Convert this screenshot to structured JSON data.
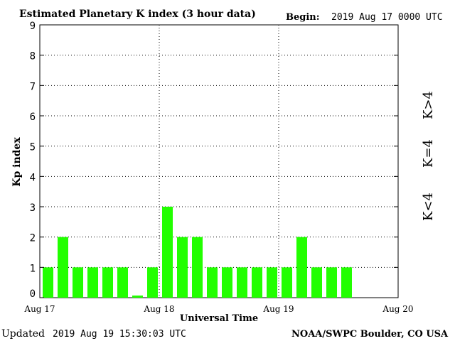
{
  "header": {
    "title": "Estimated Planetary K index (3 hour data)",
    "begin_label": "Begin:",
    "begin_value": "2019 Aug 17 0000 UTC"
  },
  "footer": {
    "updated_label": "Updated",
    "updated_value": "2019 Aug 19 15:30:03 UTC",
    "source": "NOAA/SWPC Boulder, CO USA"
  },
  "legend": {
    "storm": "K>4",
    "active": "K=4",
    "quiet": "K<4"
  },
  "colors": {
    "bar": "#22ff00",
    "storm": "#ff2200",
    "active": "#ffcc00",
    "quiet": "#22ff00"
  },
  "chart_data": {
    "type": "bar",
    "xlabel": "Universal Time",
    "ylabel": "Kp index",
    "ylim": [
      0,
      9
    ],
    "yticks": [
      "0",
      "1",
      "2",
      "3",
      "4",
      "5",
      "6",
      "7",
      "8",
      "9"
    ],
    "xticks": [
      "Aug 17",
      "Aug 18",
      "Aug 19",
      "Aug 20"
    ],
    "slots_total": 24,
    "values": [
      1,
      2,
      1,
      1,
      1,
      1,
      0.07,
      1,
      3,
      2,
      2,
      1,
      1,
      1,
      1,
      1,
      1,
      2,
      1,
      1,
      1
    ],
    "grid": true
  }
}
